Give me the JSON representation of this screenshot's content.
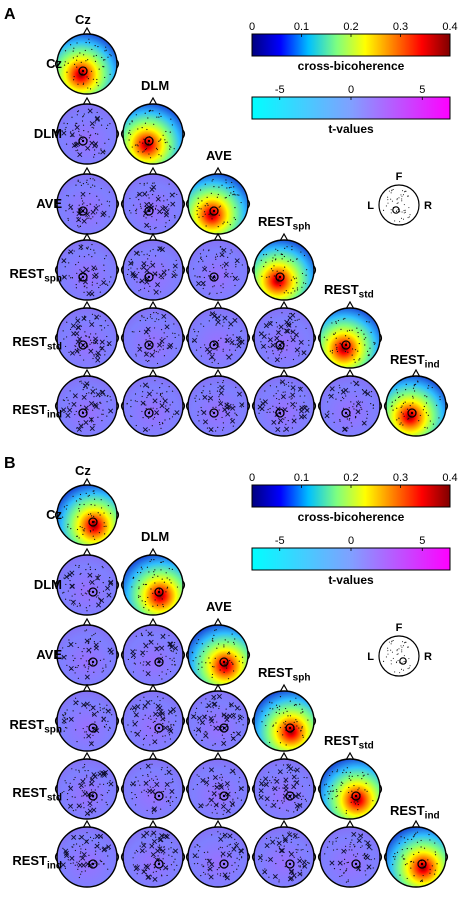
{
  "figure": {
    "row_labels": [
      {
        "main": "Cz",
        "sub": ""
      },
      {
        "main": "DLM",
        "sub": ""
      },
      {
        "main": "AVE",
        "sub": ""
      },
      {
        "main": "REST",
        "sub": "sph"
      },
      {
        "main": "REST",
        "sub": "std"
      },
      {
        "main": "REST",
        "sub": "ind"
      }
    ],
    "col_labels": [
      {
        "main": "Cz",
        "sub": ""
      },
      {
        "main": "DLM",
        "sub": ""
      },
      {
        "main": "AVE",
        "sub": ""
      },
      {
        "main": "REST",
        "sub": "sph"
      },
      {
        "main": "REST",
        "sub": "std"
      },
      {
        "main": "REST",
        "sub": "ind"
      }
    ],
    "cross_bicoherence_colorbar": {
      "label": "cross-bicoherence",
      "ticks": [
        "0",
        "0.1",
        "0.2",
        "0.3",
        "0.4"
      ],
      "colors": [
        "#00007f",
        "#0000ff",
        "#00bfff",
        "#7fff7f",
        "#ffff00",
        "#ff7f00",
        "#ff0000",
        "#7f0000"
      ]
    },
    "t_values_colorbar": {
      "label": "t-values",
      "ticks": [
        "-5",
        "0",
        "5"
      ],
      "colors": [
        "#00ffff",
        "#80a0ff",
        "#ff00ff"
      ]
    },
    "orientation_legend": {
      "front": "F",
      "left": "L",
      "right": "R"
    }
  },
  "panels": [
    {
      "letter": "A",
      "seed_side": "left"
    },
    {
      "letter": "B",
      "seed_side": "right"
    }
  ]
}
